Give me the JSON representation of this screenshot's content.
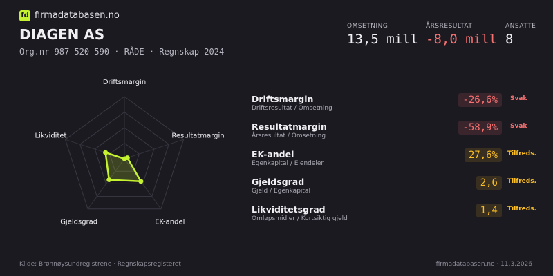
{
  "brand": "firmadatabasen.no",
  "logo": "fd",
  "title": "DIAGEN AS",
  "subtitle": "Org.nr 987 520 590 · RÅDE · Regnskap 2024",
  "stats": [
    {
      "label": "OMSETNING",
      "value": "13,5 mill",
      "color": "#f1f1f4"
    },
    {
      "label": "ÅRSRESULTAT",
      "value": "-8,0 mill",
      "color": "#f87171"
    },
    {
      "label": "ANSATTE",
      "value": "8",
      "color": "#f1f1f4"
    }
  ],
  "radar": {
    "axes": [
      "Driftsmargin",
      "Resultatmargin",
      "EK-andel",
      "Gjeldsgrad",
      "Likviditet"
    ],
    "scores": [
      0,
      5,
      45,
      42,
      32
    ],
    "rlim": [
      0,
      100
    ],
    "rings": [
      25,
      50,
      75,
      100
    ],
    "color": "#c5f230"
  },
  "metrics": [
    {
      "name": "Driftsmargin",
      "formula": "Driftsresultat / Omsetning",
      "value": "-26,6%",
      "status": "Svak",
      "color": "#f87171"
    },
    {
      "name": "Resultatmargin",
      "formula": "Årsresultat / Omsetning",
      "value": "-58,9%",
      "status": "Svak",
      "color": "#f87171"
    },
    {
      "name": "EK-andel",
      "formula": "Egenkapital / Eiendeler",
      "value": "27,6%",
      "status": "Tilfreds.",
      "color": "#fbbf24"
    },
    {
      "name": "Gjeldsgrad",
      "formula": "Gjeld / Egenkapital",
      "value": "2,6",
      "status": "Tilfreds.",
      "color": "#fbbf24"
    },
    {
      "name": "Likviditetsgrad",
      "formula": "Omløpsmidler / Kortsiktig gjeld",
      "value": "1,4",
      "status": "Tilfreds.",
      "color": "#fbbf24"
    }
  ],
  "footer": {
    "source": "Kilde: Brønnøysundregistrene · Regnskapsregisteret",
    "site": "firmadatabasen.no · 11.3.2026"
  }
}
